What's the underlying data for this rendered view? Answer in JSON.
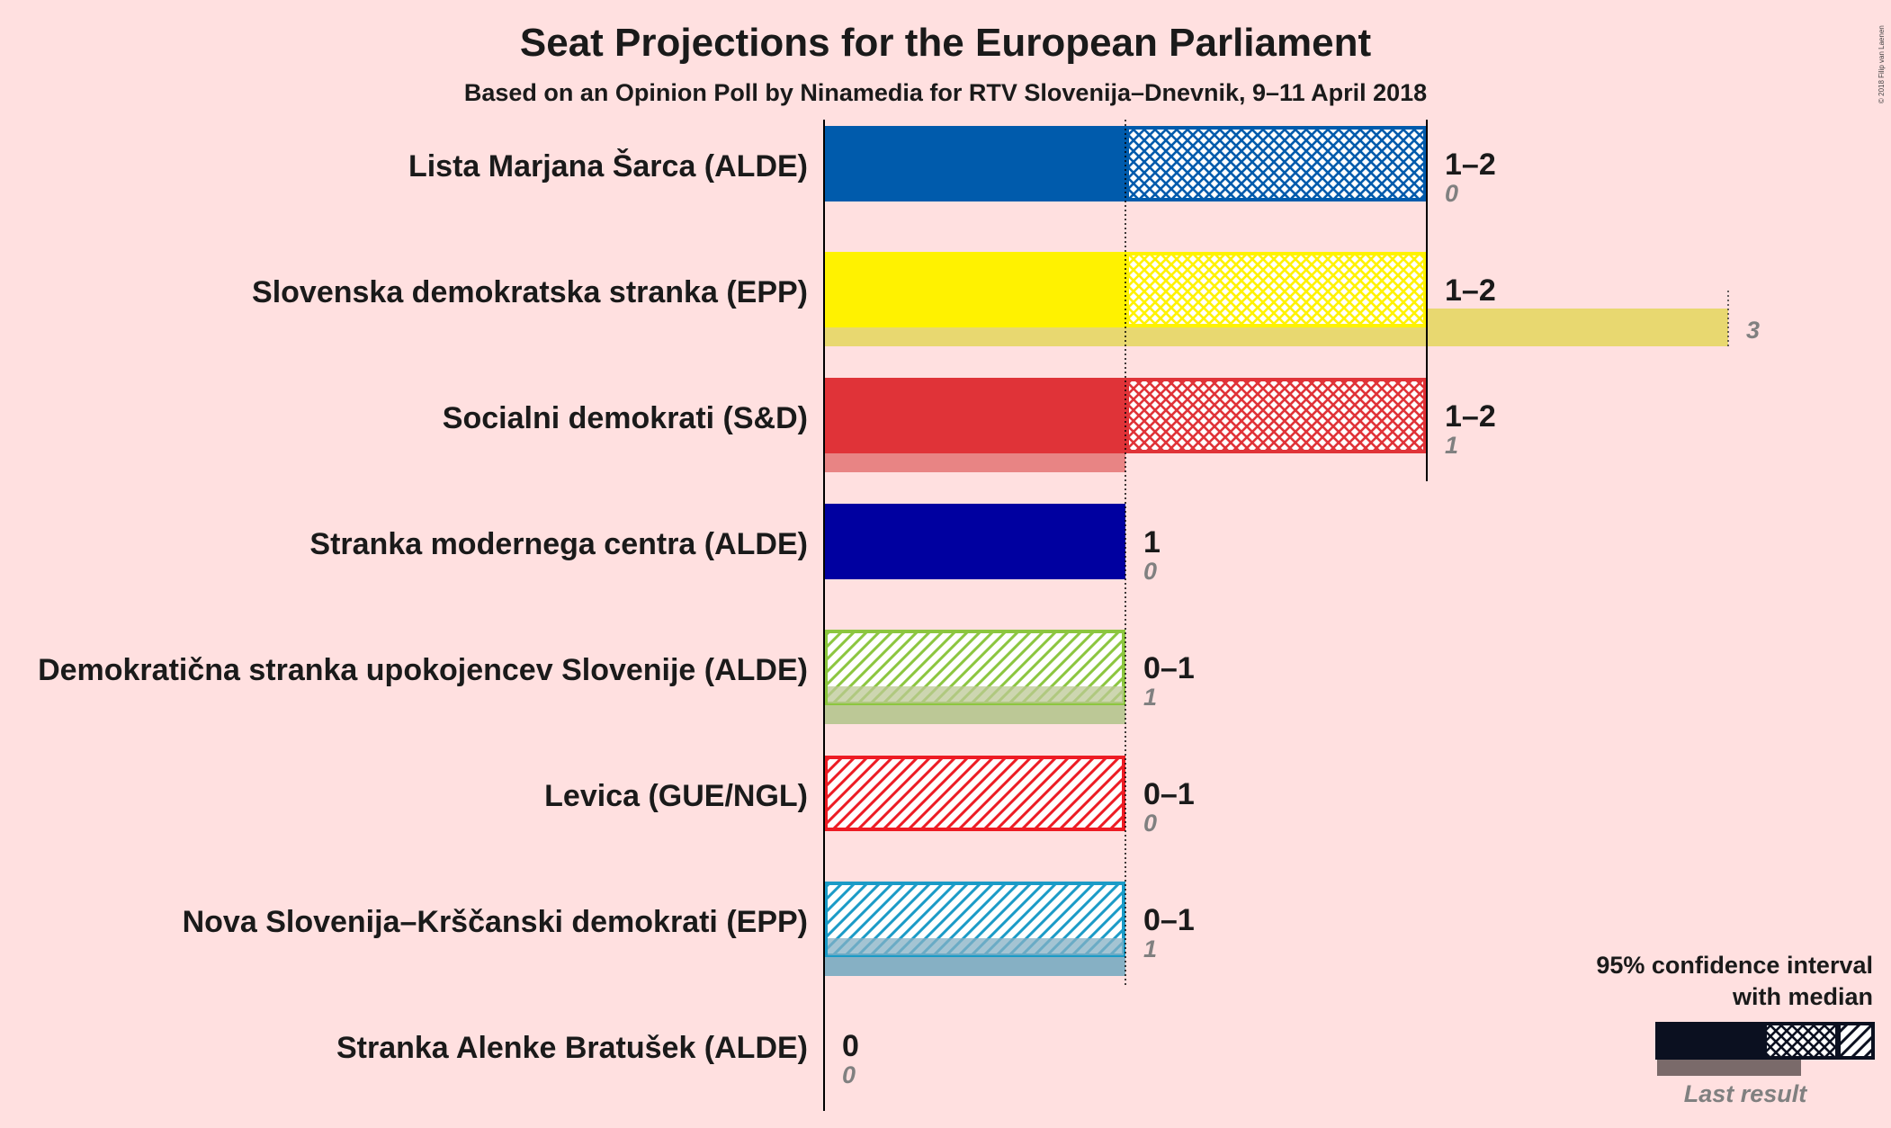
{
  "title": "Seat Projections for the European Parliament",
  "subtitle": "Based on an Opinion Poll by Ninamedia for RTV Slovenija–Dnevnik, 9–11 April 2018",
  "copyright": "© 2018 Filip van Laenen",
  "legend": {
    "line1": "95% confidence interval",
    "line2": "with median",
    "last_result": "Last result"
  },
  "chart_data": {
    "type": "bar",
    "orientation": "horizontal",
    "xlim": [
      0,
      3
    ],
    "parties": [
      {
        "name": "Lista Marjana Šarca (ALDE)",
        "low": 1,
        "median": 1,
        "high": 2,
        "last": 0,
        "range_label": "1–2",
        "last_label": "0",
        "color": "#005BAC",
        "last_color": "#9DB7DD"
      },
      {
        "name": "Slovenska demokratska stranka (EPP)",
        "low": 1,
        "median": 1,
        "high": 2,
        "last": 3,
        "range_label": "1–2",
        "last_label": "3",
        "color": "#FFF200",
        "last_color": "#E8D870"
      },
      {
        "name": "Socialni demokrati (S&D)",
        "low": 1,
        "median": 1,
        "high": 2,
        "last": 1,
        "range_label": "1–2",
        "last_label": "1",
        "color": "#E03338",
        "last_color": "#E88484"
      },
      {
        "name": "Stranka modernega centra (ALDE)",
        "low": 1,
        "median": 1,
        "high": 1,
        "last": 0,
        "range_label": "1",
        "last_label": "0",
        "color": "#0000A0",
        "last_color": "#8080C8"
      },
      {
        "name": "Demokratična stranka upokojencev Slovenije (ALDE)",
        "low": 0,
        "median": 0,
        "high": 1,
        "last": 1,
        "range_label": "0–1",
        "last_label": "1",
        "color": "#8CC63F",
        "last_color": "#BCC896"
      },
      {
        "name": "Levica (GUE/NGL)",
        "low": 0,
        "median": 0,
        "high": 1,
        "last": 0,
        "range_label": "0–1",
        "last_label": "0",
        "color": "#ED1C24",
        "last_color": "#F08080"
      },
      {
        "name": "Nova Slovenija–Krščanski demokrati (EPP)",
        "low": 0,
        "median": 0,
        "high": 1,
        "last": 1,
        "range_label": "0–1",
        "last_label": "1",
        "color": "#1B9BC7",
        "last_color": "#86B0C4"
      },
      {
        "name": "Stranka Alenke Bratušek (ALDE)",
        "low": 0,
        "median": 0,
        "high": 0,
        "last": 0,
        "range_label": "0",
        "last_label": "0",
        "color": "#F7A800",
        "last_color": "#E8C880"
      }
    ]
  }
}
